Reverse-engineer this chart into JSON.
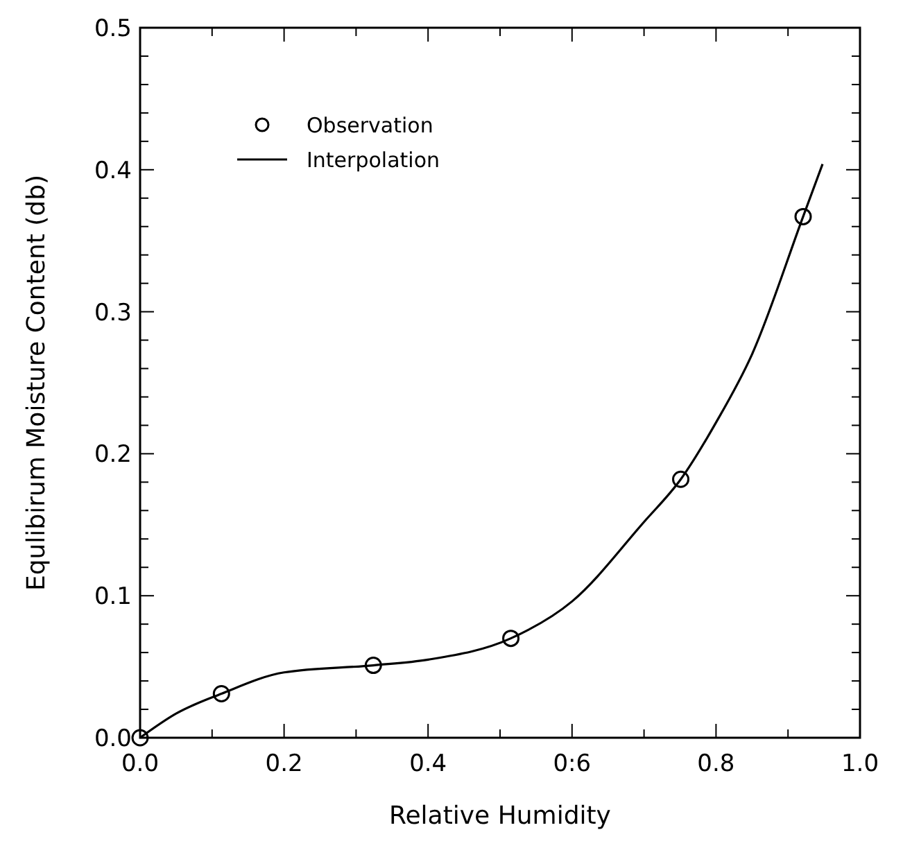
{
  "chart_data": {
    "type": "scatter",
    "xlabel": "Relative Humidity",
    "ylabel": "Equlibirum Moisture Content (db)",
    "xlim": [
      0,
      1
    ],
    "ylim": [
      0,
      0.5
    ],
    "xticks": [
      {
        "value": 0,
        "label": "0.0"
      },
      {
        "value": 0.1,
        "label": null
      },
      0.2,
      {
        "value": 0.3,
        "label": null
      },
      0.4,
      {
        "value": 0.5,
        "label": null
      },
      {
        "value": 0.6,
        "label": "0:6"
      },
      {
        "value": 0.7,
        "label": null
      },
      0.8,
      {
        "value": 0.9,
        "label": null
      },
      {
        "value": 1,
        "label": "1.0"
      }
    ],
    "yticks": [
      {
        "value": 0,
        "label": "0.0"
      },
      {
        "value": 0.02,
        "label": null
      },
      {
        "value": 0.04,
        "label": null
      },
      {
        "value": 0.06,
        "label": null
      },
      {
        "value": 0.08,
        "label": null
      },
      0.1,
      {
        "value": 0.12,
        "label": null
      },
      {
        "value": 0.14,
        "label": null
      },
      {
        "value": 0.16,
        "label": null
      },
      {
        "value": 0.18,
        "label": null
      },
      0.2,
      {
        "value": 0.22,
        "label": null
      },
      {
        "value": 0.24,
        "label": null
      },
      {
        "value": 0.26,
        "label": null
      },
      {
        "value": 0.28,
        "label": null
      },
      0.3,
      {
        "value": 0.32,
        "label": null
      },
      {
        "value": 0.34,
        "label": null
      },
      {
        "value": 0.36,
        "label": null
      },
      {
        "value": 0.38,
        "label": null
      },
      0.4,
      {
        "value": 0.42,
        "label": null
      },
      {
        "value": 0.44,
        "label": null
      },
      {
        "value": 0.46,
        "label": null
      },
      {
        "value": 0.48,
        "label": null
      },
      0.5
    ],
    "legend": "top left",
    "grid": false,
    "series": [
      {
        "name": "Observation",
        "marker": "circle",
        "color": "#000000",
        "x": [
          0,
          0.113,
          0.324,
          0.515,
          0.751,
          0.921
        ],
        "values": [
          0,
          0.031,
          0.051,
          0.07,
          0.182,
          0.367
        ]
      },
      {
        "name": "Interpolation",
        "type": "line",
        "marker": "none",
        "line_style": "solid",
        "color": "#000000",
        "x": [
          0,
          0.05,
          0.113,
          0.2,
          0.324,
          0.4,
          0.515,
          0.6,
          0.7,
          0.751,
          0.8,
          0.85,
          0.921,
          0.948
        ],
        "values": [
          0,
          0.017,
          0.031,
          0.046,
          0.051,
          0.055,
          0.07,
          0.096,
          0.152,
          0.182,
          0.222,
          0.27,
          0.367,
          0.404
        ]
      }
    ]
  }
}
